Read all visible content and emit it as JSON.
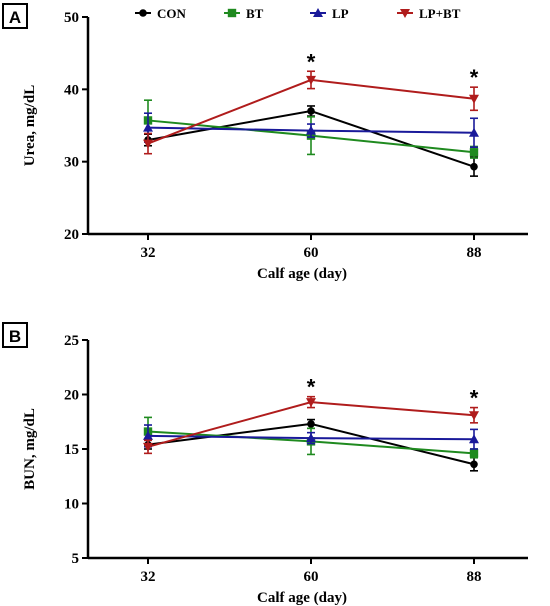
{
  "legend": [
    {
      "label": "CON",
      "color": "#000000",
      "marker": "circle"
    },
    {
      "label": "BT",
      "color": "#1f8a1f",
      "marker": "square"
    },
    {
      "label": "LP",
      "color": "#1a1a9a",
      "marker": "triangle-up"
    },
    {
      "label": "LP+BT",
      "color": "#b01c1c",
      "marker": "triangle-down"
    }
  ],
  "chart_data": [
    {
      "type": "line",
      "panel_label": "A",
      "xlabel": "Calf age (day)",
      "ylabel": "Urea, mg/dL",
      "ylim": [
        20,
        50
      ],
      "yticks": [
        "20",
        "30",
        "40",
        "50"
      ],
      "categories": [
        "32",
        "60",
        "88"
      ],
      "significance": [
        "",
        "*",
        "*"
      ],
      "series": [
        {
          "name": "CON",
          "values": [
            33.0,
            37.0,
            29.3
          ],
          "errors": [
            0.8,
            0.7,
            1.3
          ]
        },
        {
          "name": "BT",
          "values": [
            35.7,
            33.6,
            31.3
          ],
          "errors": [
            2.8,
            2.6,
            0.8
          ]
        },
        {
          "name": "LP",
          "values": [
            34.7,
            34.3,
            34.0
          ],
          "errors": [
            2.0,
            0.9,
            2.0
          ]
        },
        {
          "name": "LP+BT",
          "values": [
            32.5,
            41.3,
            38.7
          ],
          "errors": [
            1.4,
            1.2,
            1.6
          ]
        }
      ]
    },
    {
      "type": "line",
      "panel_label": "B",
      "xlabel": "Calf age (day)",
      "ylabel": "BUN, mg/dL",
      "ylim": [
        5,
        25
      ],
      "yticks": [
        "5",
        "10",
        "15",
        "20",
        "25"
      ],
      "categories": [
        "32",
        "60",
        "88"
      ],
      "significance": [
        "",
        "*",
        "*"
      ],
      "series": [
        {
          "name": "CON",
          "values": [
            15.4,
            17.3,
            13.6
          ],
          "errors": [
            0.4,
            0.4,
            0.6
          ]
        },
        {
          "name": "BT",
          "values": [
            16.6,
            15.7,
            14.6
          ],
          "errors": [
            1.3,
            1.2,
            0.4
          ]
        },
        {
          "name": "LP",
          "values": [
            16.2,
            16.0,
            15.9
          ],
          "errors": [
            1.0,
            0.5,
            0.9
          ]
        },
        {
          "name": "LP+BT",
          "values": [
            15.2,
            19.3,
            18.1
          ],
          "errors": [
            0.6,
            0.5,
            0.7
          ]
        }
      ]
    }
  ]
}
